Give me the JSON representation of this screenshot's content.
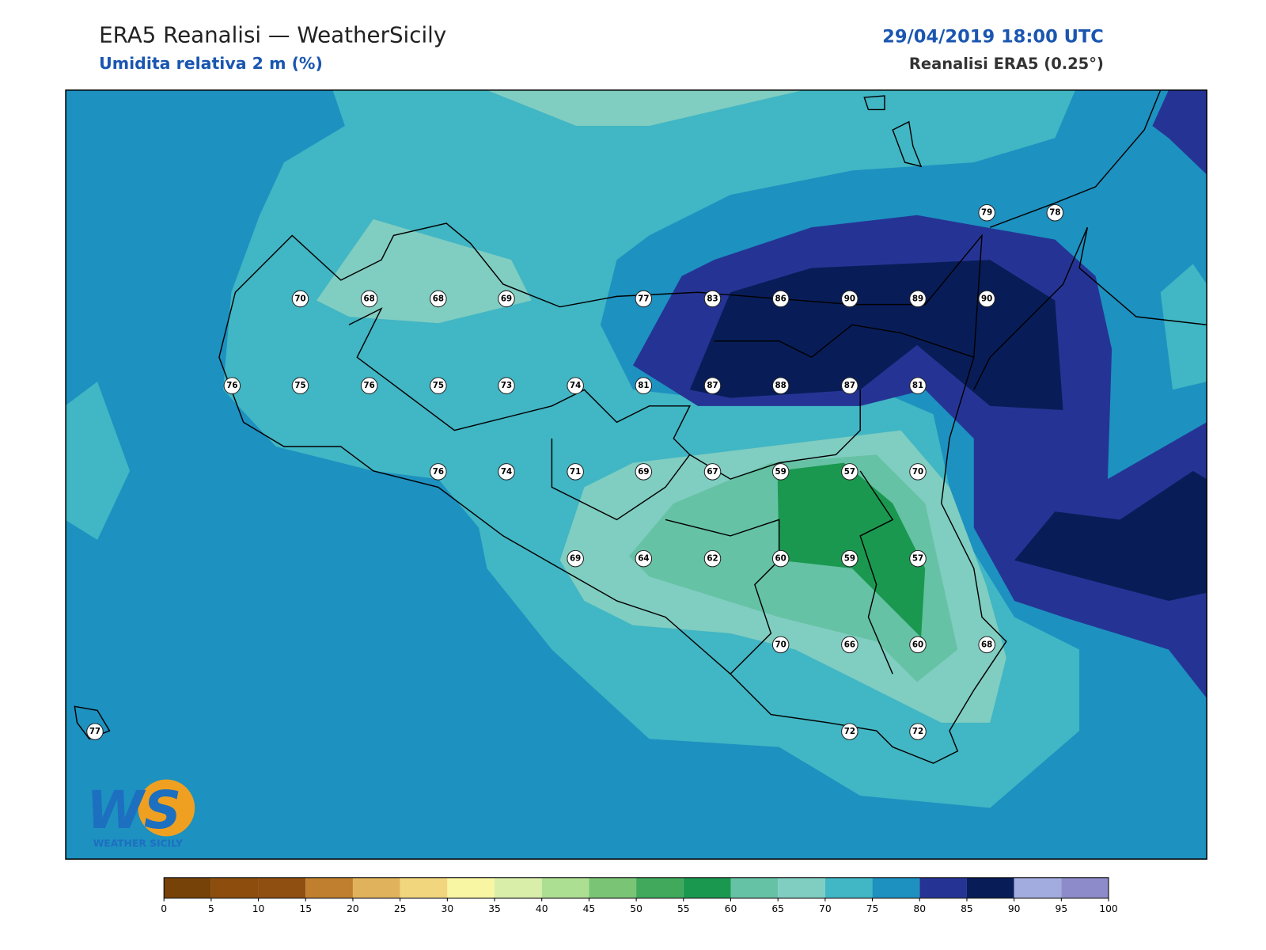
{
  "header": {
    "title": "ERA5 Reanalisi — WeatherSicily",
    "subtitle": "Umidita relativa 2 m (%)",
    "datetime": "29/04/2019 18:00 UTC",
    "source": "Reanalisi ERA5 (0.25°)"
  },
  "stations": [
    79,
    78,
    70,
    68,
    68,
    69,
    77,
    83,
    86,
    90,
    89,
    90,
    76,
    75,
    76,
    75,
    73,
    74,
    81,
    87,
    88,
    87,
    81,
    76,
    74,
    71,
    69,
    67,
    59,
    57,
    70,
    69,
    64,
    62,
    60,
    59,
    57,
    70,
    66,
    60,
    68,
    72,
    72,
    77
  ],
  "colorbar": {
    "ticks": [
      0,
      5,
      10,
      15,
      20,
      25,
      30,
      35,
      40,
      45,
      50,
      55,
      60,
      65,
      70,
      75,
      80,
      85,
      90,
      95,
      100
    ],
    "colors": [
      "#774207",
      "#8c4d0d",
      "#8f4f10",
      "#c07f2e",
      "#e0b25c",
      "#f1d67d",
      "#f8f6a3",
      "#d9eea9",
      "#addf92",
      "#7ac476",
      "#40a95c",
      "#1a9850",
      "#66c2a4",
      "#80cdc1",
      "#41b6c4",
      "#1d91c0",
      "#253494",
      "#081d58",
      "#a2acde",
      "#8d8bc9"
    ]
  },
  "logo": {
    "mark": "WS",
    "text": "WEATHER SICILY"
  }
}
